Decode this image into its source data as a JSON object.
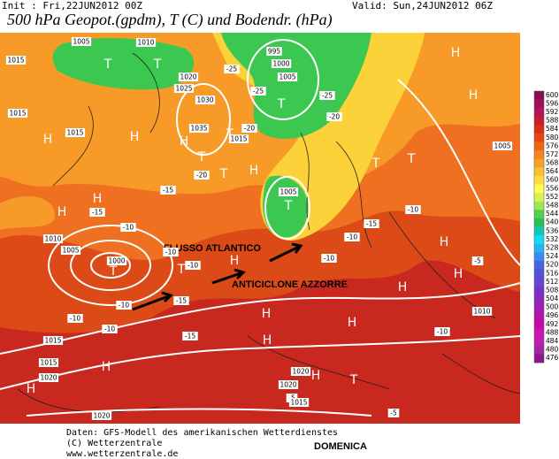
{
  "header": {
    "init": "Init : Fri,22JUN2012 00Z",
    "valid": "Valid: Sun,24JUN2012 06Z",
    "title": "500 hPa Geopot.(gpdm), T (C) und Bodendr. (hPa)"
  },
  "map": {
    "annotations": [
      "FLUSSO ATLANTICO",
      "ANTICICLONE AZZORRE"
    ],
    "labels": [
      "1015",
      "T",
      "1005",
      "1010",
      "T",
      "1020",
      "1025",
      "1030",
      "1035",
      "995",
      "1000",
      "1005",
      "T",
      "-25",
      "-25",
      "-20",
      "-20",
      "-25",
      "1015",
      "1015",
      "1015",
      "H",
      "H",
      "H",
      "T",
      "T",
      "H",
      "-20",
      "T",
      "-15",
      "T",
      "1005",
      "H",
      "H",
      "-15",
      "-10",
      "1010",
      "1005",
      "1000",
      "T",
      "T",
      "H",
      "-10",
      "-10",
      "-10",
      "-10",
      "-15",
      "H",
      "T",
      "T",
      "-10",
      "1005",
      "H",
      "H",
      "H",
      "H",
      "-5",
      "1010",
      "-10",
      "-10",
      "-10",
      "1015",
      "-15",
      "-15",
      "H",
      "H",
      "H",
      "-10",
      "1015",
      "H",
      "1020",
      "H",
      "1020",
      "1020",
      "-5",
      "H",
      "T",
      "1015",
      "-5",
      "1020"
    ]
  },
  "legend": {
    "levels": [
      600,
      596,
      592,
      588,
      584,
      580,
      576,
      572,
      568,
      564,
      560,
      556,
      552,
      548,
      544,
      540,
      536,
      532,
      528,
      524,
      520,
      516,
      512,
      508,
      504,
      500,
      496,
      492,
      488,
      484,
      480,
      476
    ],
    "colors": [
      "#8b0a50",
      "#a0105a",
      "#b4145a",
      "#c81e28",
      "#dc2d14",
      "#e64614",
      "#ef6414",
      "#f5821e",
      "#f8a028",
      "#fcbe32",
      "#ffdc3c",
      "#ffff50",
      "#dcf050",
      "#a0e650",
      "#50d250",
      "#28be5a",
      "#14c8b4",
      "#14dcf0",
      "#28b4f0",
      "#3c8cf0",
      "#4664e6",
      "#5050dc",
      "#6446d2",
      "#7832c8",
      "#8c28be",
      "#a01eb4",
      "#b414aa",
      "#c80aa0",
      "#d214b4",
      "#be1eb4",
      "#a028a0",
      "#8c148c"
    ]
  },
  "footer": {
    "source": "Daten: GFS-Modell des amerikanischen Wetterdienstes",
    "copyright": "(C) Wetterzentrale",
    "url": "www.wetterzentrale.de",
    "day": "DOMENICA"
  }
}
